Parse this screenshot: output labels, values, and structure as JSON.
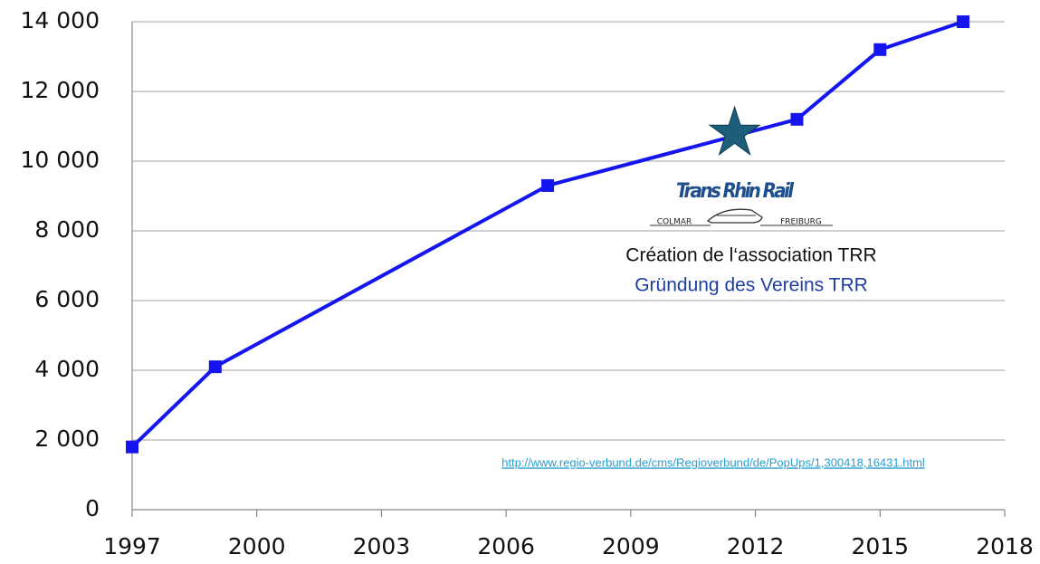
{
  "chart_data": {
    "type": "line",
    "x": [
      1997,
      1999,
      2007,
      2013,
      2015,
      2017
    ],
    "series": [
      {
        "name": null,
        "color": "#1515f0",
        "values": [
          1800,
          4100,
          9300,
          11200,
          13200,
          14000
        ]
      }
    ],
    "xlim": [
      1997,
      2018
    ],
    "xticks": [
      1997,
      2000,
      2003,
      2006,
      2009,
      2012,
      2015,
      2018
    ],
    "ylim": [
      0,
      14000
    ],
    "yticks": [
      0,
      {
        "value": 2000,
        "label": "2 000"
      },
      {
        "value": 4000,
        "label": "4 000"
      },
      {
        "value": 6000,
        "label": "6 000"
      },
      {
        "value": 8000,
        "label": "8 000"
      },
      {
        "value": 10000,
        "label": "10 000"
      },
      {
        "value": 12000,
        "label": "12 000"
      },
      {
        "value": 14000,
        "label": "14 000"
      }
    ],
    "grid": true,
    "marker": {
      "x": 2011.5,
      "y": 10800,
      "color": "#1d5f7a"
    },
    "logo": {
      "title": "Trans Rhin Rail",
      "left": "COLMAR",
      "right": "FREIBURG"
    },
    "annotations": [
      "Création de l‘association TRR",
      "Gründung des Vereins TRR"
    ],
    "source": "http://www.regio-verbund.de/cms/Regioverbund/de/PopUps/1,300418,16431.html"
  }
}
